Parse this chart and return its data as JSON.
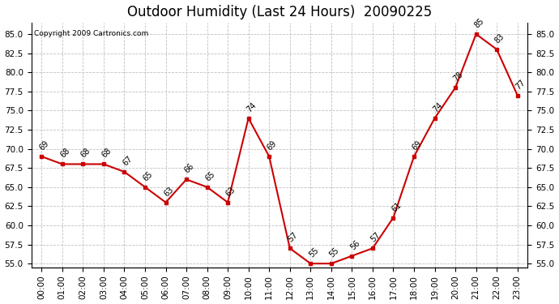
{
  "title": "Outdoor Humidity (Last 24 Hours)  20090225",
  "copyright": "Copyright 2009 Cartronics.com",
  "x_labels": [
    "00:00",
    "01:00",
    "02:00",
    "03:00",
    "04:00",
    "05:00",
    "06:00",
    "07:00",
    "08:00",
    "09:00",
    "10:00",
    "11:00",
    "12:00",
    "13:00",
    "14:00",
    "15:00",
    "16:00",
    "17:00",
    "18:00",
    "19:00",
    "20:00",
    "21:00",
    "22:00",
    "23:00"
  ],
  "y_values": [
    69,
    68,
    68,
    68,
    67,
    65,
    63,
    66,
    65,
    63,
    74,
    69,
    57,
    55,
    55,
    56,
    57,
    61,
    69,
    74,
    78,
    85,
    83,
    77
  ],
  "point_labels": [
    "69",
    "68",
    "68",
    "68",
    "67",
    "65",
    "63",
    "66",
    "65",
    "63",
    "74",
    "69",
    "57",
    "55",
    "55",
    "56",
    "57",
    "61",
    "69",
    "74",
    "78",
    "85",
    "83",
    "77"
  ],
  "ylim": [
    54.5,
    86.5
  ],
  "yticks": [
    55.0,
    57.5,
    60.0,
    62.5,
    65.0,
    67.5,
    70.0,
    72.5,
    75.0,
    77.5,
    80.0,
    82.5,
    85.0
  ],
  "ytick_labels": [
    "55.0",
    "57.5",
    "60.0",
    "62.5",
    "65.0",
    "67.5",
    "70.0",
    "72.5",
    "75.0",
    "77.5",
    "80.0",
    "82.5",
    "85.0"
  ],
  "line_color": "#cc0000",
  "marker_color": "#cc0000",
  "bg_color": "#ffffff",
  "grid_color": "#c0c0c0",
  "title_fontsize": 12,
  "label_fontsize": 7.5,
  "annotation_fontsize": 7,
  "copyright_fontsize": 6.5
}
